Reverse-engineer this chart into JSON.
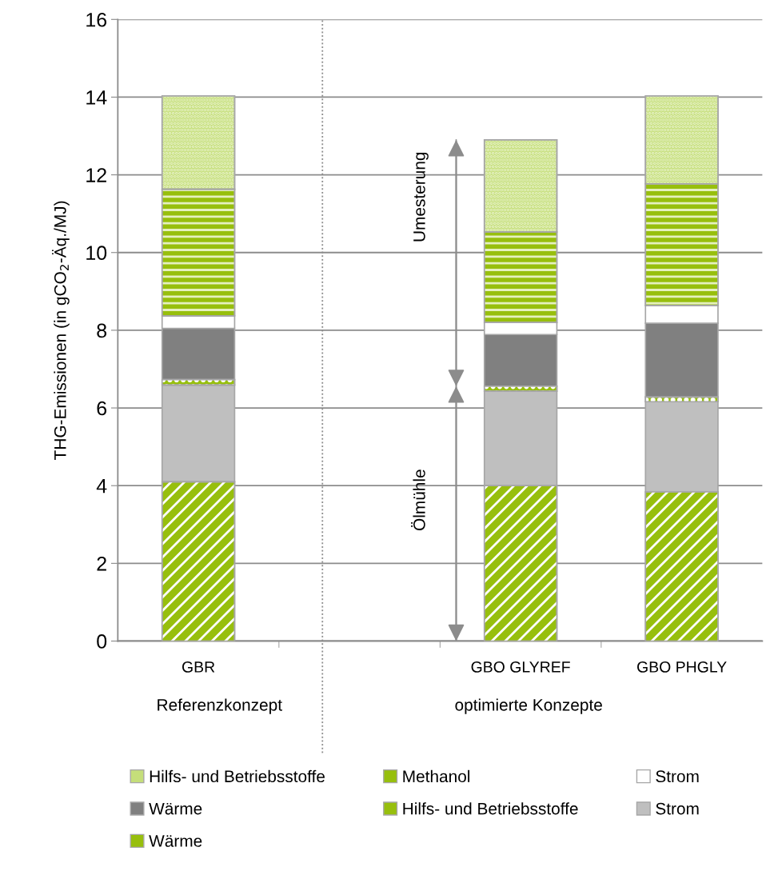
{
  "chart_data": {
    "type": "bar",
    "stacked": true,
    "ylabel": "THG-Emissionen (in gCO$_{2}$-Äq./MJ)",
    "categories": [
      "GBR",
      null,
      "GBO GLYREF",
      "GBO PHGLY"
    ],
    "series": [
      {
        "name": "Wärme",
        "color": "#97bf0d",
        "values": [
          4.1,
          null,
          4.0,
          3.84
        ]
      },
      {
        "name": "Strom",
        "color": "#bfbfbf",
        "values": [
          2.49,
          null,
          2.43,
          2.32
        ]
      },
      {
        "name": "Hilfs- und Betriebsstoffe",
        "color": "#97bf0d",
        "values": [
          0.14,
          null,
          0.13,
          0.12
        ]
      },
      {
        "name": "Wärme",
        "color": "#808080",
        "values": [
          1.32,
          null,
          1.33,
          1.9
        ]
      },
      {
        "name": "Strom",
        "color": "#ffffff",
        "values": [
          0.32,
          null,
          0.31,
          0.46
        ]
      },
      {
        "name": "Methanol",
        "color": "#97bf0d",
        "values": [
          3.26,
          null,
          2.33,
          3.13
        ]
      },
      {
        "name": "Hilfs- und Betriebsstoffe",
        "color": "#c5de7a",
        "values": [
          2.4,
          null,
          2.37,
          2.26
        ]
      }
    ],
    "ylim": [
      0,
      16
    ],
    "yticks": [
      0,
      2,
      4,
      6,
      8,
      10,
      12,
      14,
      16
    ],
    "grid": "y",
    "legend": "bottom",
    "annotations": [
      "Umesterung",
      "Ölmühle",
      "Referenzkonzept",
      "optimierte Konzepte"
    ]
  }
}
